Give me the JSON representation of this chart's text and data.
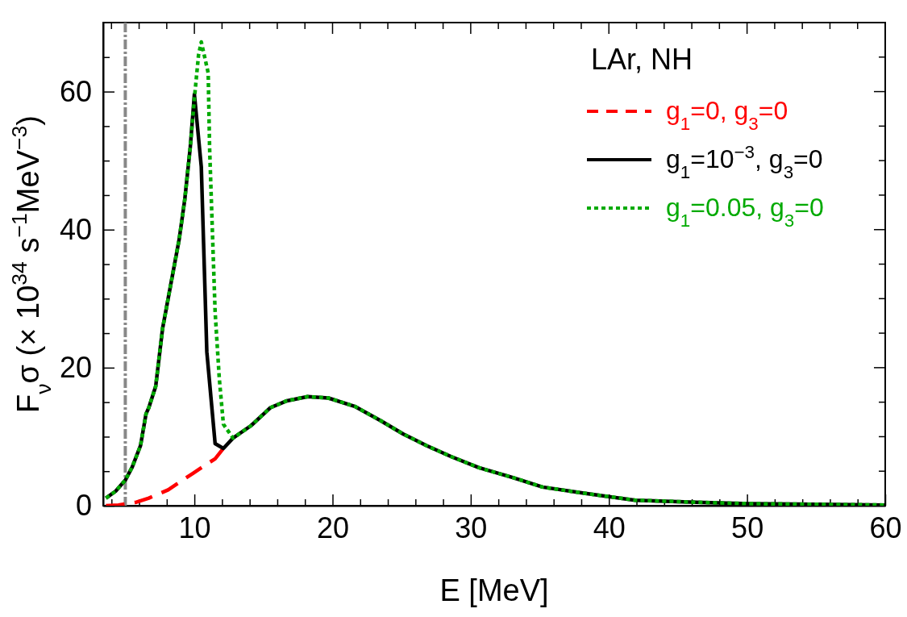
{
  "chart_data": {
    "type": "line",
    "xlabel": "E [MeV]",
    "ylabel": "F$_{ν}$σ (× 10$^{34}$ s$^{−1}$MeV$^{−3}$)",
    "legend_title": "LAr, NH",
    "legend": "top right",
    "grid": false,
    "marker": "none",
    "xlim": [
      3.4,
      60
    ],
    "ylim": [
      0,
      70
    ],
    "xticks": [
      {
        "value": 4,
        "label": null
      },
      {
        "value": 6,
        "label": null
      },
      {
        "value": 8,
        "label": null
      },
      10,
      {
        "value": 12,
        "label": null
      },
      {
        "value": 14,
        "label": null
      },
      {
        "value": 16,
        "label": null
      },
      {
        "value": 18,
        "label": null
      },
      20,
      {
        "value": 22,
        "label": null
      },
      {
        "value": 24,
        "label": null
      },
      {
        "value": 26,
        "label": null
      },
      {
        "value": 28,
        "label": null
      },
      30,
      {
        "value": 32,
        "label": null
      },
      {
        "value": 34,
        "label": null
      },
      {
        "value": 36,
        "label": null
      },
      {
        "value": 38,
        "label": null
      },
      40,
      {
        "value": 42,
        "label": null
      },
      {
        "value": 44,
        "label": null
      },
      {
        "value": 46,
        "label": null
      },
      {
        "value": 48,
        "label": null
      },
      50,
      {
        "value": 52,
        "label": null
      },
      {
        "value": 54,
        "label": null
      },
      {
        "value": 56,
        "label": null
      },
      {
        "value": 58,
        "label": null
      },
      60
    ],
    "yticks": [
      0,
      {
        "value": 5,
        "label": null
      },
      {
        "value": 10,
        "label": null
      },
      {
        "value": 15,
        "label": null
      },
      20,
      {
        "value": 25,
        "label": null
      },
      {
        "value": 30,
        "label": null
      },
      {
        "value": 35,
        "label": null
      },
      40,
      {
        "value": 45,
        "label": null
      },
      {
        "value": 50,
        "label": null
      },
      {
        "value": 55,
        "label": null
      },
      60,
      {
        "value": 65,
        "label": null
      }
    ],
    "ref_lines": [
      {
        "axis": "x",
        "value": 5,
        "label": null,
        "color": "#888888",
        "line_style": "dashed"
      }
    ],
    "series": [
      {
        "name": "g$_{1}$=0, g$_{3}$=0",
        "color": "#ff0000",
        "line_style": "dashed",
        "x": [
          3.6,
          4.5,
          5.8,
          6.7,
          8.1,
          9.9,
          10.8,
          11.5,
          12.1
        ],
        "values": [
          0,
          0.1,
          0.5,
          1.1,
          2.3,
          4.7,
          5.9,
          6.8,
          8.3
        ]
      },
      {
        "name": "g$_{1}$=10$^{−3}$, g$_{3}$=0",
        "color": "#000000",
        "line_style": "solid",
        "x": [
          3.6,
          4.3,
          5.0,
          5.5,
          6.1,
          6.5,
          6.7,
          7.2,
          7.7,
          8.1,
          8.9,
          9.3,
          9.7,
          10.0,
          10.5,
          10.9,
          11.5,
          12.1,
          12.8,
          14.1,
          15.5,
          16.7,
          18.2,
          19.7,
          21.6,
          23.5,
          25.1,
          26.8,
          28.6,
          30.6,
          33.0,
          35.2,
          38.2,
          41.9,
          46.3,
          50.1,
          55,
          60
        ],
        "values": [
          1.1,
          2.1,
          3.7,
          5.6,
          8.7,
          13.3,
          14.2,
          17.3,
          25.7,
          30.0,
          38.6,
          44.3,
          51.9,
          59.6,
          49.1,
          22.3,
          9.0,
          8.3,
          9.8,
          11.6,
          14.2,
          15.2,
          15.8,
          15.6,
          14.4,
          12.3,
          10.4,
          8.7,
          7.1,
          5.5,
          4.1,
          2.7,
          1.8,
          0.8,
          0.5,
          0.3,
          0.2,
          0.1
        ]
      },
      {
        "name": "g$_{1}$=0.05, g$_{3}$=0",
        "color": "#00aa00",
        "line_style": "dotted",
        "x": [
          3.6,
          4.3,
          5.0,
          5.5,
          6.1,
          6.5,
          6.7,
          7.2,
          7.7,
          8.1,
          8.9,
          9.3,
          9.7,
          10.0,
          10.3,
          10.5,
          11.0,
          11.1,
          11.5,
          11.8,
          12.1,
          12.8,
          14.1,
          15.5,
          16.7,
          18.2,
          19.7,
          21.6,
          23.5,
          25.1,
          26.8,
          28.6,
          30.6,
          33.0,
          35.2,
          38.2,
          41.9,
          46.3,
          50.1,
          55,
          60
        ],
        "values": [
          1.1,
          2.1,
          3.7,
          5.6,
          8.7,
          13.3,
          14.2,
          17.3,
          25.7,
          30.0,
          38.6,
          44.3,
          51.9,
          59.0,
          65.3,
          67.2,
          62.7,
          51.9,
          28.1,
          18.5,
          11.8,
          9.8,
          11.6,
          14.2,
          15.2,
          15.8,
          15.6,
          14.4,
          12.3,
          10.4,
          8.7,
          7.1,
          5.5,
          4.1,
          2.7,
          1.8,
          0.8,
          0.5,
          0.3,
          0.2,
          0.1
        ]
      }
    ]
  }
}
